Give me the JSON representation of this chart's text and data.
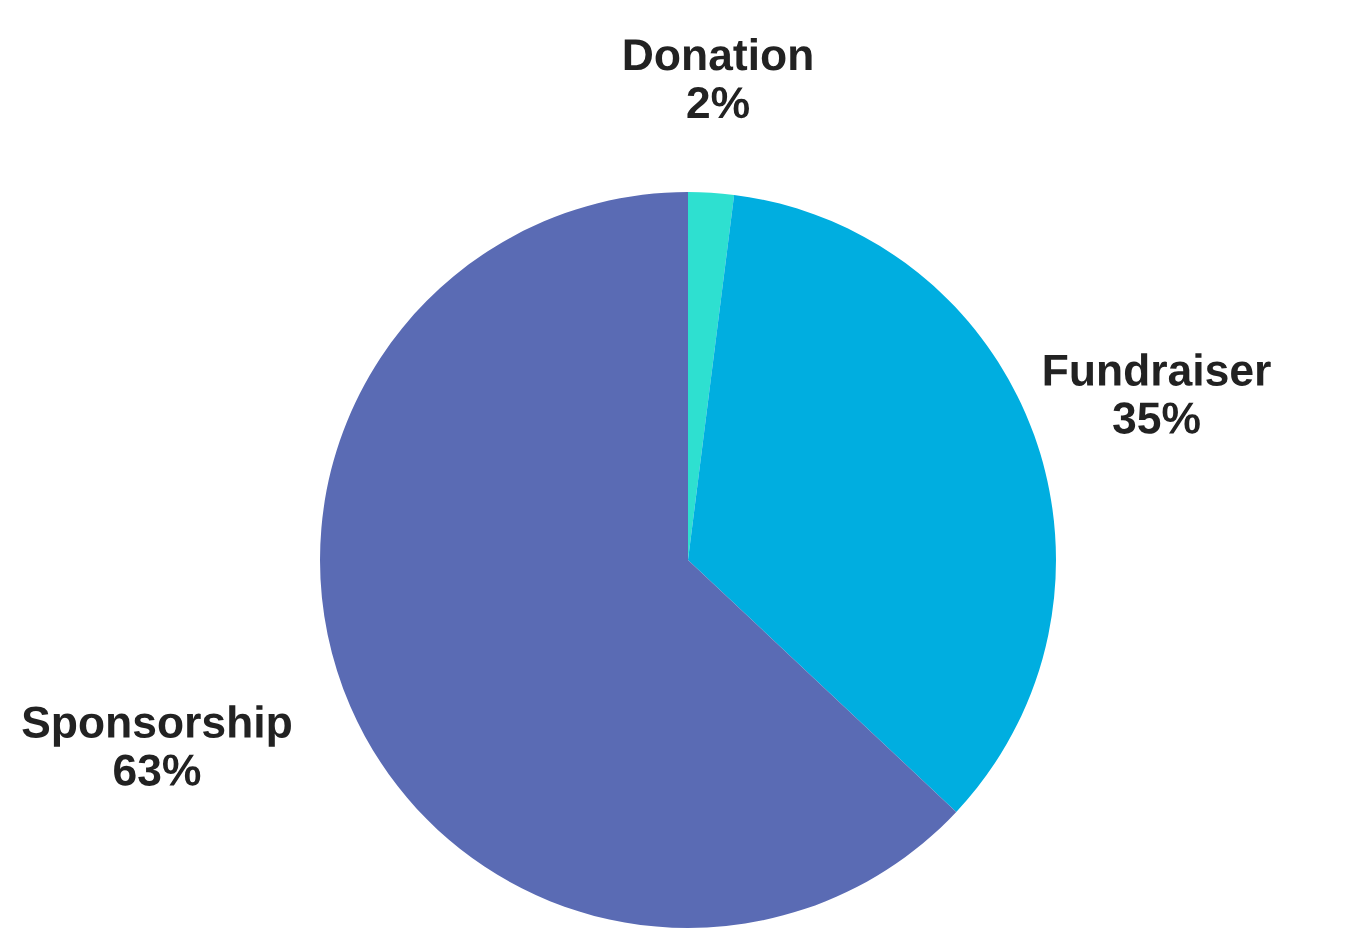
{
  "chart_data": {
    "type": "pie",
    "categories": [
      "Donation",
      "Fundraiser",
      "Sponsorship"
    ],
    "values": [
      2,
      35,
      63
    ],
    "value_labels": [
      "2%",
      "35%",
      "63%"
    ],
    "colors": [
      "#2ee0d0",
      "#00aee0",
      "#5a6bb4"
    ]
  }
}
